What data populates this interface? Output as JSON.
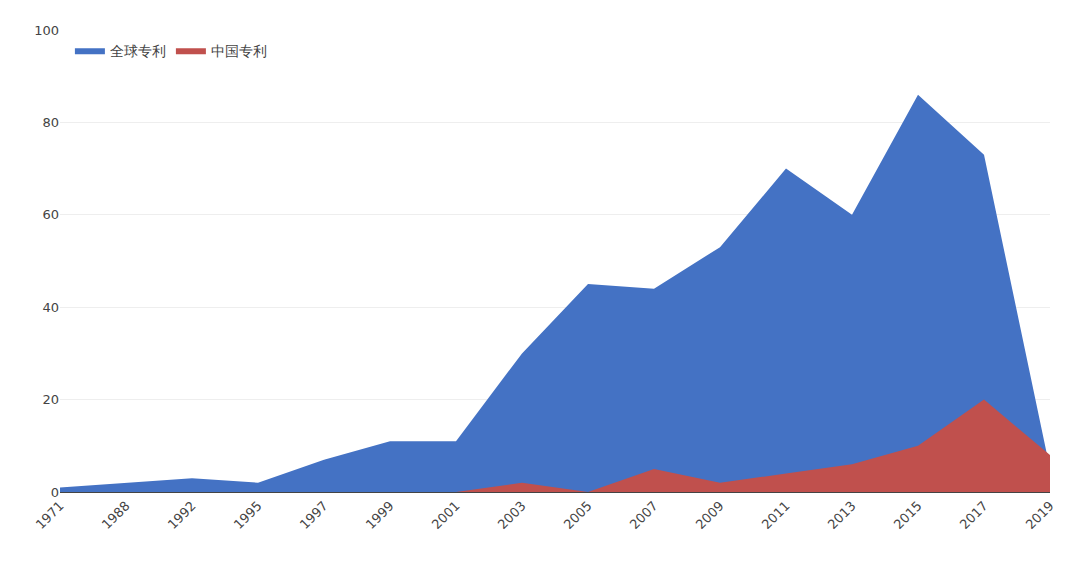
{
  "chart_data": {
    "type": "area",
    "categories": [
      "1971",
      "1988",
      "1992",
      "1995",
      "1997",
      "1999",
      "2001",
      "2003",
      "2005",
      "2007",
      "2009",
      "2011",
      "2013",
      "2015",
      "2017",
      "2019"
    ],
    "series": [
      {
        "name": "全球专利",
        "color": "#4472C4",
        "values": [
          1,
          2,
          3,
          2,
          7,
          11,
          11,
          30,
          45,
          44,
          53,
          70,
          60,
          86,
          73,
          5
        ]
      },
      {
        "name": "中国专利",
        "color": "#C0504D",
        "values": [
          0,
          0,
          0,
          0,
          0,
          0,
          0,
          2,
          0,
          5,
          2,
          4,
          6,
          10,
          20,
          8
        ]
      }
    ],
    "ylim": [
      0,
      100
    ],
    "yticks": [
      0,
      20,
      40,
      60,
      80,
      100
    ],
    "grid": true,
    "legend": "upper left"
  }
}
